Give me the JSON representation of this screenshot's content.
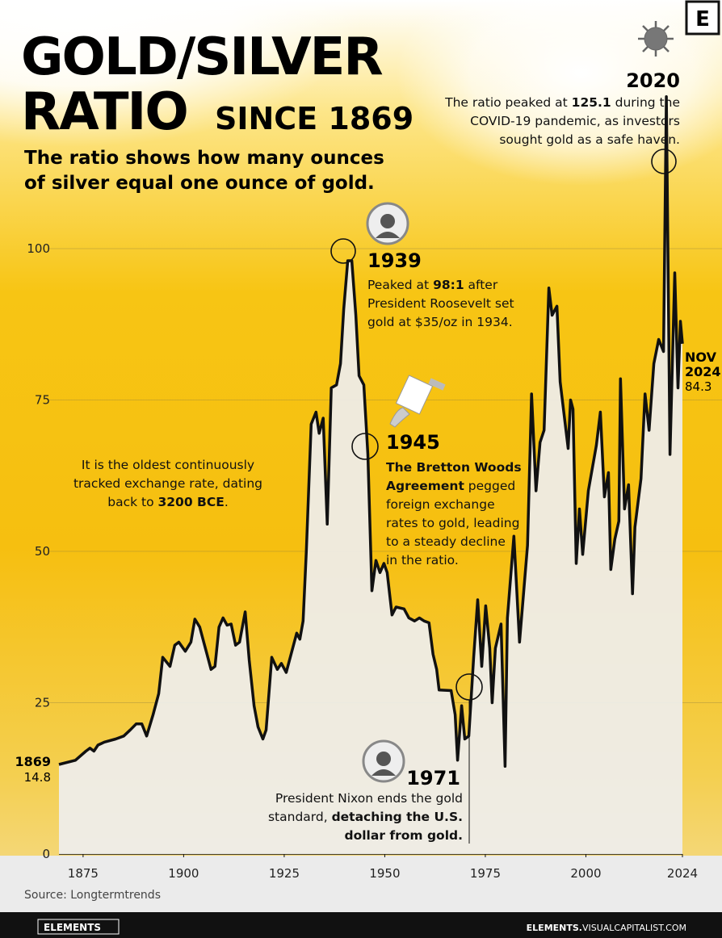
{
  "chart_data": {
    "type": "line",
    "title_lines": [
      "GOLD/SILVER",
      "RATIO"
    ],
    "title_suffix": "SINCE 1869",
    "subtitle_lines": [
      "The ratio shows how many ounces",
      "of silver equal one ounce of gold."
    ],
    "logo": "E",
    "source": "Source: Longtermtrends",
    "footer_left": "ELEMENTS",
    "footer_right": [
      {
        "t": "ELEMENTS.",
        "b": true
      },
      {
        "t": "VISUALCAPITALIST.COM"
      }
    ],
    "end_label_lines": [
      "NOV",
      "2024"
    ],
    "xlim": [
      1869,
      2024
    ],
    "ylim": [
      0,
      130
    ],
    "xticks": [
      1875,
      1900,
      1925,
      1950,
      1975,
      2000,
      2024
    ],
    "yticks": [
      0,
      25,
      50,
      75,
      100
    ],
    "grid": true,
    "series": [
      {
        "name": "Gold/Silver ratio",
        "color": "#111111",
        "x": [
          1869,
          1873.1,
          1875.7,
          1876.7,
          1877.7,
          1878.7,
          1880.3,
          1883.1,
          1885.1,
          1886.7,
          1888.2,
          1889.6,
          1890.8,
          1892.4,
          1893.8,
          1894.8,
          1896.6,
          1897.8,
          1898.8,
          1900.4,
          1901.8,
          1902.8,
          1904.0,
          1905.4,
          1906.8,
          1907.8,
          1908.8,
          1909.8,
          1910.8,
          1911.8,
          1912.9,
          1913.9,
          1915.3,
          1916.3,
          1917.5,
          1918.5,
          1919.7,
          1920.5,
          1921.9,
          1923.3,
          1924.3,
          1925.5,
          1926.9,
          1928.1,
          1928.9,
          1929.7,
          1930.5,
          1931.7,
          1932.9,
          1933.7,
          1934.7,
          1935.7,
          1936.7,
          1938.0,
          1939.0,
          1939.8,
          1940.8,
          1941.8,
          1942.8,
          1943.6,
          1944.8,
          1945.8,
          1946.8,
          1947.8,
          1948.8,
          1949.8,
          1950.6,
          1951.8,
          1952.8,
          1954.8,
          1956.0,
          1957.4,
          1958.6,
          1959.8,
          1961.0,
          1962.0,
          1962.9,
          1963.5,
          1966.5,
          1967.5,
          1968.1,
          1969.1,
          1969.9,
          1970.9,
          1972.1,
          1973.1,
          1974.1,
          1975.1,
          1976.1,
          1976.7,
          1977.5,
          1978.9,
          1979.9,
          1980.5,
          1982.1,
          1983.5,
          1985.5,
          1986.5,
          1987.6,
          1988.6,
          1989.6,
          1990.8,
          1991.6,
          1992.8,
          1993.6,
          1995.6,
          1996.2,
          1996.8,
          1997.6,
          1998.4,
          1999.2,
          2000.6,
          2002.6,
          2003.6,
          2004.6,
          2005.6,
          2006.2,
          2007.2,
          2008.2,
          2008.6,
          2009.6,
          2010.6,
          2011.6,
          2012.2,
          2013.7,
          2014.7,
          2015.7,
          2016.9,
          2018.1,
          2019.3,
          2020,
          2020.9,
          2022.1,
          2022.9,
          2023.5,
          2024
        ],
        "values": [
          14.8,
          15.5,
          17,
          17.5,
          17,
          18,
          18.5,
          19,
          19.5,
          20.5,
          21.5,
          21.5,
          19.5,
          23,
          26.5,
          32.5,
          31,
          34.5,
          35,
          33.5,
          35,
          38.8,
          37.5,
          34,
          30.5,
          31,
          37.5,
          39,
          37.8,
          38,
          34.5,
          35,
          40,
          32,
          24.5,
          21,
          19,
          20.5,
          32.5,
          30.5,
          31.5,
          30,
          33.5,
          36.5,
          35.5,
          38.5,
          50,
          71,
          73,
          69.5,
          72,
          54.5,
          77,
          77.5,
          81,
          90,
          98,
          98,
          89,
          79,
          77.5,
          66,
          43.5,
          48.5,
          46.5,
          48,
          46.5,
          39.5,
          40.8,
          40.5,
          39,
          38.5,
          39,
          38.5,
          38.2,
          33,
          30.5,
          27.1,
          27,
          23,
          15.5,
          24.5,
          19,
          19.5,
          32.5,
          42,
          31,
          41,
          34,
          25,
          34,
          38,
          14.5,
          39,
          52.5,
          35,
          51,
          76,
          60,
          68,
          70,
          93.5,
          89,
          90.5,
          78,
          67,
          75,
          73.5,
          48,
          57,
          49.5,
          60,
          67.5,
          73,
          59,
          63,
          47,
          52,
          55,
          78.5,
          57,
          61,
          43,
          54,
          62,
          76,
          70,
          81,
          85,
          83,
          125.1,
          66,
          96,
          77,
          88,
          84.3
        ]
      }
    ],
    "annotations": [
      {
        "year": "2020",
        "lines": [
          [
            {
              "t": "The ratio peaked at "
            },
            {
              "t": "125.1",
              "b": true
            },
            {
              "t": " during the"
            }
          ],
          [
            {
              "t": "COVID-19 pandemic, as investors"
            }
          ],
          [
            {
              "t": "sought gold as a safe haven."
            }
          ]
        ]
      },
      {
        "year": "1939",
        "lines": [
          [
            {
              "t": "Peaked at "
            },
            {
              "t": "98:1",
              "b": true
            },
            {
              "t": " after"
            }
          ],
          [
            {
              "t": "President Roosevelt set"
            }
          ],
          [
            {
              "t": "gold at $35/oz in 1934."
            }
          ]
        ]
      },
      {
        "year": "1945",
        "lines": [
          [
            {
              "t": "The Bretton Woods",
              "b": true
            }
          ],
          [
            {
              "t": "Agreement",
              "b": true
            },
            {
              "t": " pegged"
            }
          ],
          [
            {
              "t": "foreign exchange"
            }
          ],
          [
            {
              "t": "rates to gold, leading"
            }
          ],
          [
            {
              "t": "to a steady decline"
            }
          ],
          [
            {
              "t": "in the ratio."
            }
          ]
        ]
      },
      {
        "year": "1971",
        "lines": [
          [
            {
              "t": "President Nixon ends the gold"
            }
          ],
          [
            {
              "t": "standard, "
            },
            {
              "t": "detaching the U.S.",
              "b": true
            }
          ],
          [
            {
              "t": "dollar from gold.",
              "b": true
            }
          ]
        ]
      },
      {
        "lines": [
          [
            {
              "t": "It is the oldest continuously"
            }
          ],
          [
            {
              "t": "tracked exchange rate, dating"
            }
          ],
          [
            {
              "t": "back to "
            },
            {
              "t": "3200 BCE",
              "b": true
            },
            {
              "t": "."
            }
          ]
        ]
      }
    ]
  }
}
